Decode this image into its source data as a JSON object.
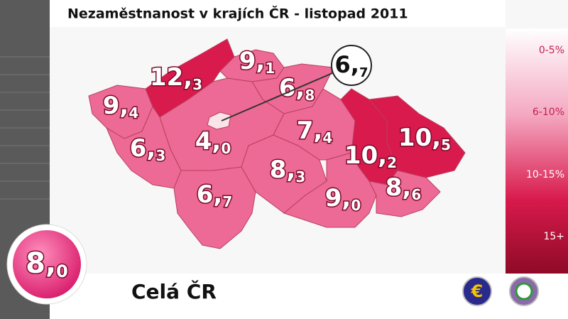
{
  "title": "Nezaměstnanost v krajích ČR - listopad 2011",
  "legend": [
    {
      "label": "0-5%",
      "color": "#fbe3ec"
    },
    {
      "label": "6-10%",
      "color": "#ec6a95"
    },
    {
      "label": "10-15%",
      "color": "#d81a4c"
    },
    {
      "label": "15+",
      "color": "#9e0b2c"
    }
  ],
  "regions": [
    {
      "value": 9.4,
      "label": "9,4",
      "color": "#ec6a95"
    },
    {
      "value": 12.3,
      "label": "12,3",
      "color": "#d81a4c"
    },
    {
      "value": 9.1,
      "label": "9,1",
      "color": "#ec6a95"
    },
    {
      "value": 6.8,
      "label": "6,8",
      "color": "#ec6a95"
    },
    {
      "value": 6.7,
      "label": "6,7",
      "color": "#ec6a95"
    },
    {
      "value": 4.0,
      "label": "4,0",
      "color": "#fbe3ec"
    },
    {
      "value": 6.3,
      "label": "6,3",
      "color": "#ec6a95"
    },
    {
      "value": 6.7,
      "label": "6,7",
      "color": "#ec6a95"
    },
    {
      "value": 8.3,
      "label": "8,3",
      "color": "#ec6a95"
    },
    {
      "value": 7.4,
      "label": "7,4",
      "color": "#ec6a95"
    },
    {
      "value": 10.2,
      "label": "10,2",
      "color": "#d81a4c"
    },
    {
      "value": 10.5,
      "label": "10,5",
      "color": "#d81a4c"
    },
    {
      "value": 9.0,
      "label": "9,0",
      "color": "#ec6a95"
    },
    {
      "value": 8.6,
      "label": "8,6",
      "color": "#ec6a95"
    }
  ],
  "total": {
    "name": "Celá ČR",
    "value": 8.0,
    "label": "8,0"
  },
  "buttons": [
    {
      "label": "€"
    }
  ]
}
